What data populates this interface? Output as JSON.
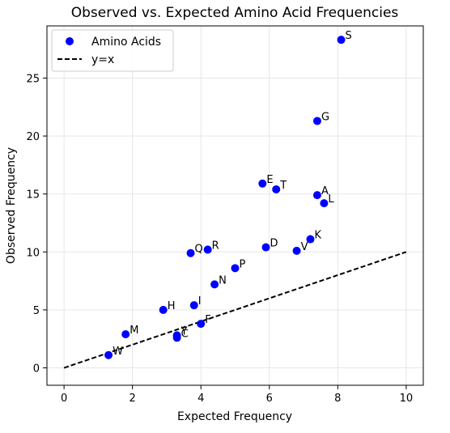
{
  "chart_data": {
    "type": "scatter",
    "title": "Observed vs. Expected Amino Acid Frequencies",
    "xlabel": "Expected Frequency",
    "ylabel": "Observed Frequency",
    "xlim": [
      -0.5,
      10.5
    ],
    "ylim": [
      -1.5,
      29.5
    ],
    "xticks": [
      0,
      2,
      4,
      6,
      8,
      10
    ],
    "yticks": [
      0,
      5,
      10,
      15,
      20,
      25
    ],
    "grid": true,
    "legend_position": "top-left",
    "legend": [
      {
        "label": "Amino Acids",
        "kind": "marker",
        "color": "#0000ff"
      },
      {
        "label": "y=x",
        "kind": "dashed-line",
        "color": "#000000"
      }
    ],
    "series": [
      {
        "name": "Amino Acids",
        "color": "#0000ff",
        "points": [
          {
            "label": "S",
            "x": 8.1,
            "y": 28.3
          },
          {
            "label": "G",
            "x": 7.4,
            "y": 21.3
          },
          {
            "label": "E",
            "x": 5.8,
            "y": 15.9
          },
          {
            "label": "T",
            "x": 6.2,
            "y": 15.4
          },
          {
            "label": "A",
            "x": 7.4,
            "y": 14.9
          },
          {
            "label": "L",
            "x": 7.6,
            "y": 14.2
          },
          {
            "label": "K",
            "x": 7.2,
            "y": 11.1
          },
          {
            "label": "D",
            "x": 5.9,
            "y": 10.4
          },
          {
            "label": "V",
            "x": 6.8,
            "y": 10.1
          },
          {
            "label": "Q",
            "x": 3.7,
            "y": 9.9
          },
          {
            "label": "R",
            "x": 4.2,
            "y": 10.2
          },
          {
            "label": "P",
            "x": 5.0,
            "y": 8.6
          },
          {
            "label": "N",
            "x": 4.4,
            "y": 7.2
          },
          {
            "label": "I",
            "x": 3.8,
            "y": 5.4
          },
          {
            "label": "H",
            "x": 2.9,
            "y": 5.0
          },
          {
            "label": "F",
            "x": 4.0,
            "y": 3.8
          },
          {
            "label": "M",
            "x": 1.8,
            "y": 2.9
          },
          {
            "label": "Y",
            "x": 3.3,
            "y": 2.8
          },
          {
            "label": "C",
            "x": 3.3,
            "y": 2.6
          },
          {
            "label": "W",
            "x": 1.3,
            "y": 1.1
          }
        ]
      },
      {
        "name": "y=x",
        "color": "#000000",
        "style": "dashed",
        "line": [
          [
            0,
            0
          ],
          [
            10,
            10
          ]
        ]
      }
    ]
  }
}
